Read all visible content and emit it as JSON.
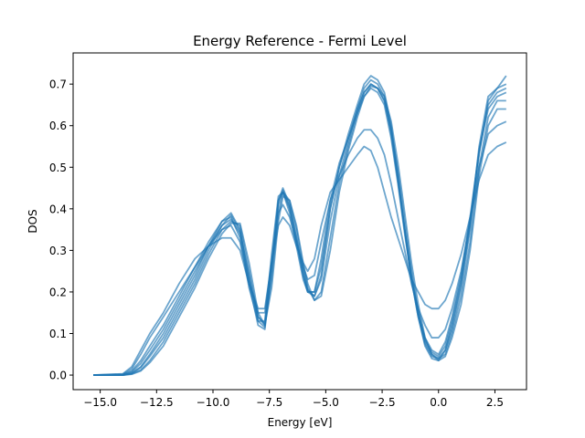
{
  "chart_data": {
    "type": "line",
    "title": "Energy Reference - Fermi Level",
    "xlabel": "Energy [eV]",
    "ylabel": "DOS",
    "xlim": [
      -16.2,
      3.9
    ],
    "ylim": [
      -0.035,
      0.775
    ],
    "xticks": [
      -15.0,
      -12.5,
      -10.0,
      -7.5,
      -5.0,
      -2.5,
      0.0,
      2.5
    ],
    "xtick_labels": [
      "−15.0",
      "−12.5",
      "−10.0",
      "−7.5",
      "−5.0",
      "−2.5",
      "0.0",
      "2.5"
    ],
    "yticks": [
      0.0,
      0.1,
      0.2,
      0.3,
      0.4,
      0.5,
      0.6,
      0.7
    ],
    "ytick_labels": [
      "0.0",
      "0.1",
      "0.2",
      "0.3",
      "0.4",
      "0.5",
      "0.6",
      "0.7"
    ],
    "grid": false,
    "legend": "none",
    "line_color": "#1f77b4",
    "line_alpha": 0.65,
    "series": [
      {
        "x": [
          -15.3,
          -14.0,
          -13.6,
          -13.2,
          -12.8,
          -12.2,
          -11.5,
          -10.8,
          -10.2,
          -9.6,
          -9.2,
          -8.8,
          -8.4,
          -8.0,
          -7.7,
          -7.4,
          -7.1,
          -6.9,
          -6.6,
          -6.3,
          -6.0,
          -5.8,
          -5.5,
          -5.2,
          -4.8,
          -4.4,
          -4.0,
          -3.6,
          -3.3,
          -3.0,
          -2.7,
          -2.4,
          -2.1,
          -1.8,
          -1.5,
          -1.2,
          -0.9,
          -0.6,
          -0.3,
          0.0,
          0.3,
          0.6,
          1.0,
          1.4,
          1.8,
          2.2,
          2.6,
          3.0
        ],
        "y": [
          0.0,
          0.0,
          0.005,
          0.02,
          0.05,
          0.1,
          0.17,
          0.24,
          0.31,
          0.37,
          0.39,
          0.35,
          0.22,
          0.12,
          0.11,
          0.26,
          0.42,
          0.45,
          0.41,
          0.33,
          0.24,
          0.2,
          0.19,
          0.24,
          0.4,
          0.5,
          0.58,
          0.65,
          0.7,
          0.72,
          0.71,
          0.68,
          0.6,
          0.48,
          0.35,
          0.23,
          0.14,
          0.07,
          0.04,
          0.035,
          0.06,
          0.12,
          0.22,
          0.36,
          0.55,
          0.67,
          0.69,
          0.7
        ]
      },
      {
        "x": [
          -15.3,
          -14.0,
          -13.6,
          -13.2,
          -12.8,
          -12.2,
          -11.5,
          -10.8,
          -10.2,
          -9.6,
          -9.2,
          -8.8,
          -8.4,
          -8.0,
          -7.7,
          -7.4,
          -7.1,
          -6.9,
          -6.6,
          -6.3,
          -6.0,
          -5.8,
          -5.5,
          -5.2,
          -4.8,
          -4.4,
          -4.0,
          -3.6,
          -3.3,
          -3.0,
          -2.7,
          -2.4,
          -2.1,
          -1.8,
          -1.5,
          -1.2,
          -0.9,
          -0.6,
          -0.3,
          0.0,
          0.3,
          0.6,
          1.0,
          1.4,
          1.8,
          2.2,
          2.6,
          3.0
        ],
        "y": [
          0.0,
          0.001,
          0.01,
          0.035,
          0.07,
          0.12,
          0.19,
          0.26,
          0.32,
          0.37,
          0.38,
          0.33,
          0.21,
          0.13,
          0.13,
          0.29,
          0.43,
          0.44,
          0.39,
          0.31,
          0.23,
          0.2,
          0.2,
          0.28,
          0.42,
          0.51,
          0.57,
          0.63,
          0.67,
          0.69,
          0.68,
          0.65,
          0.57,
          0.46,
          0.34,
          0.23,
          0.15,
          0.09,
          0.06,
          0.05,
          0.08,
          0.14,
          0.24,
          0.38,
          0.54,
          0.64,
          0.67,
          0.68
        ]
      },
      {
        "x": [
          -15.3,
          -14.0,
          -13.6,
          -13.2,
          -12.8,
          -12.2,
          -11.5,
          -10.8,
          -10.2,
          -9.6,
          -9.2,
          -8.8,
          -8.4,
          -8.0,
          -7.7,
          -7.4,
          -7.1,
          -6.9,
          -6.6,
          -6.3,
          -6.0,
          -5.8,
          -5.5,
          -5.2,
          -4.8,
          -4.4,
          -4.0,
          -3.6,
          -3.3,
          -3.0,
          -2.7,
          -2.4,
          -2.1,
          -1.8,
          -1.5,
          -1.2,
          -0.9,
          -0.6,
          -0.3,
          0.0,
          0.3,
          0.6,
          1.0,
          1.4,
          1.8,
          2.2,
          2.6,
          3.0
        ],
        "y": [
          0.0,
          0.0,
          0.003,
          0.012,
          0.035,
          0.08,
          0.15,
          0.22,
          0.29,
          0.35,
          0.37,
          0.36,
          0.25,
          0.14,
          0.12,
          0.23,
          0.39,
          0.44,
          0.42,
          0.35,
          0.26,
          0.21,
          0.18,
          0.2,
          0.33,
          0.46,
          0.55,
          0.63,
          0.68,
          0.7,
          0.69,
          0.66,
          0.59,
          0.49,
          0.37,
          0.25,
          0.15,
          0.08,
          0.05,
          0.04,
          0.05,
          0.1,
          0.19,
          0.32,
          0.5,
          0.62,
          0.66,
          0.66
        ]
      },
      {
        "x": [
          -15.3,
          -14.0,
          -13.6,
          -13.2,
          -12.8,
          -12.2,
          -11.5,
          -10.8,
          -10.2,
          -9.6,
          -9.2,
          -8.8,
          -8.4,
          -8.0,
          -7.7,
          -7.4,
          -7.1,
          -6.9,
          -6.6,
          -6.3,
          -6.0,
          -5.8,
          -5.5,
          -5.2,
          -4.8,
          -4.4,
          -4.0,
          -3.6,
          -3.3,
          -3.0,
          -2.7,
          -2.4,
          -2.1,
          -1.8,
          -1.5,
          -1.2,
          -0.9,
          -0.6,
          -0.3,
          0.0,
          0.3,
          0.6,
          1.0,
          1.4,
          1.8,
          2.2,
          2.6,
          3.0
        ],
        "y": [
          0.0,
          0.002,
          0.015,
          0.05,
          0.09,
          0.14,
          0.2,
          0.26,
          0.31,
          0.35,
          0.36,
          0.32,
          0.22,
          0.15,
          0.15,
          0.27,
          0.39,
          0.41,
          0.38,
          0.32,
          0.26,
          0.23,
          0.24,
          0.32,
          0.42,
          0.48,
          0.53,
          0.57,
          0.59,
          0.59,
          0.57,
          0.53,
          0.46,
          0.38,
          0.3,
          0.22,
          0.16,
          0.12,
          0.09,
          0.09,
          0.11,
          0.16,
          0.25,
          0.37,
          0.5,
          0.58,
          0.6,
          0.61
        ]
      },
      {
        "x": [
          -15.3,
          -14.0,
          -13.6,
          -13.2,
          -12.8,
          -12.2,
          -11.5,
          -10.8,
          -10.2,
          -9.6,
          -9.2,
          -8.8,
          -8.4,
          -8.0,
          -7.7,
          -7.4,
          -7.1,
          -6.9,
          -6.6,
          -6.3,
          -6.0,
          -5.8,
          -5.5,
          -5.2,
          -4.8,
          -4.4,
          -4.0,
          -3.6,
          -3.3,
          -3.0,
          -2.7,
          -2.4,
          -2.1,
          -1.8,
          -1.5,
          -1.2,
          -0.9,
          -0.6,
          -0.3,
          0.0,
          0.3,
          0.6,
          1.0,
          1.4,
          1.8,
          2.2,
          2.6,
          3.0
        ],
        "y": [
          0.0,
          0.003,
          0.02,
          0.06,
          0.1,
          0.15,
          0.22,
          0.28,
          0.31,
          0.33,
          0.33,
          0.3,
          0.22,
          0.16,
          0.16,
          0.27,
          0.36,
          0.38,
          0.36,
          0.31,
          0.27,
          0.25,
          0.28,
          0.36,
          0.44,
          0.47,
          0.5,
          0.53,
          0.55,
          0.54,
          0.5,
          0.44,
          0.38,
          0.33,
          0.28,
          0.23,
          0.2,
          0.17,
          0.16,
          0.16,
          0.18,
          0.22,
          0.29,
          0.38,
          0.47,
          0.53,
          0.55,
          0.56
        ]
      },
      {
        "x": [
          -15.3,
          -14.0,
          -13.6,
          -13.2,
          -12.8,
          -12.2,
          -11.5,
          -10.8,
          -10.2,
          -9.6,
          -9.2,
          -8.8,
          -8.4,
          -8.0,
          -7.7,
          -7.4,
          -7.1,
          -6.9,
          -6.6,
          -6.3,
          -6.0,
          -5.8,
          -5.5,
          -5.2,
          -4.8,
          -4.4,
          -4.0,
          -3.6,
          -3.3,
          -3.0,
          -2.7,
          -2.4,
          -2.1,
          -1.8,
          -1.5,
          -1.2,
          -0.9,
          -0.6,
          -0.3,
          0.0,
          0.3,
          0.6,
          1.0,
          1.4,
          1.8,
          2.2,
          2.6,
          3.0
        ],
        "y": [
          0.0,
          0.0,
          0.004,
          0.018,
          0.045,
          0.09,
          0.16,
          0.23,
          0.3,
          0.36,
          0.385,
          0.345,
          0.24,
          0.13,
          0.115,
          0.25,
          0.41,
          0.445,
          0.405,
          0.33,
          0.25,
          0.205,
          0.19,
          0.23,
          0.37,
          0.48,
          0.56,
          0.64,
          0.69,
          0.71,
          0.7,
          0.67,
          0.59,
          0.47,
          0.35,
          0.23,
          0.14,
          0.075,
          0.045,
          0.04,
          0.06,
          0.11,
          0.21,
          0.35,
          0.53,
          0.66,
          0.69,
          0.72
        ]
      },
      {
        "x": [
          -15.3,
          -14.0,
          -13.6,
          -13.2,
          -12.8,
          -12.2,
          -11.5,
          -10.8,
          -10.2,
          -9.6,
          -9.2,
          -8.8,
          -8.4,
          -8.0,
          -7.7,
          -7.4,
          -7.1,
          -6.9,
          -6.6,
          -6.3,
          -6.0,
          -5.8,
          -5.5,
          -5.2,
          -4.8,
          -4.4,
          -4.0,
          -3.6,
          -3.3,
          -3.0,
          -2.7,
          -2.4,
          -2.1,
          -1.8,
          -1.5,
          -1.2,
          -0.9,
          -0.6,
          -0.3,
          0.0,
          0.3,
          0.6,
          1.0,
          1.4,
          1.8,
          2.2,
          2.6,
          3.0
        ],
        "y": [
          0.0,
          0.001,
          0.008,
          0.028,
          0.06,
          0.11,
          0.18,
          0.25,
          0.31,
          0.36,
          0.375,
          0.34,
          0.23,
          0.14,
          0.125,
          0.27,
          0.42,
          0.44,
          0.4,
          0.32,
          0.24,
          0.2,
          0.2,
          0.26,
          0.4,
          0.5,
          0.57,
          0.64,
          0.68,
          0.7,
          0.69,
          0.66,
          0.58,
          0.47,
          0.35,
          0.24,
          0.15,
          0.085,
          0.055,
          0.045,
          0.07,
          0.13,
          0.23,
          0.37,
          0.54,
          0.65,
          0.68,
          0.69
        ]
      },
      {
        "x": [
          -15.3,
          -14.0,
          -13.6,
          -13.2,
          -12.8,
          -12.2,
          -11.5,
          -10.8,
          -10.2,
          -9.6,
          -9.2,
          -8.8,
          -8.4,
          -8.0,
          -7.7,
          -7.4,
          -7.1,
          -6.9,
          -6.6,
          -6.3,
          -6.0,
          -5.8,
          -5.5,
          -5.2,
          -4.8,
          -4.4,
          -4.0,
          -3.6,
          -3.3,
          -3.0,
          -2.7,
          -2.4,
          -2.1,
          -1.8,
          -1.5,
          -1.2,
          -0.9,
          -0.6,
          -0.3,
          0.0,
          0.3,
          0.6,
          1.0,
          1.4,
          1.8,
          2.2,
          2.6,
          3.0
        ],
        "y": [
          0.0,
          0.0,
          0.002,
          0.01,
          0.03,
          0.07,
          0.14,
          0.21,
          0.28,
          0.34,
          0.365,
          0.365,
          0.27,
          0.15,
          0.12,
          0.21,
          0.37,
          0.43,
          0.42,
          0.36,
          0.27,
          0.22,
          0.18,
          0.19,
          0.3,
          0.44,
          0.54,
          0.62,
          0.67,
          0.695,
          0.69,
          0.67,
          0.61,
          0.51,
          0.39,
          0.27,
          0.17,
          0.09,
          0.05,
          0.035,
          0.045,
          0.09,
          0.17,
          0.3,
          0.48,
          0.6,
          0.64,
          0.64
        ]
      }
    ]
  }
}
